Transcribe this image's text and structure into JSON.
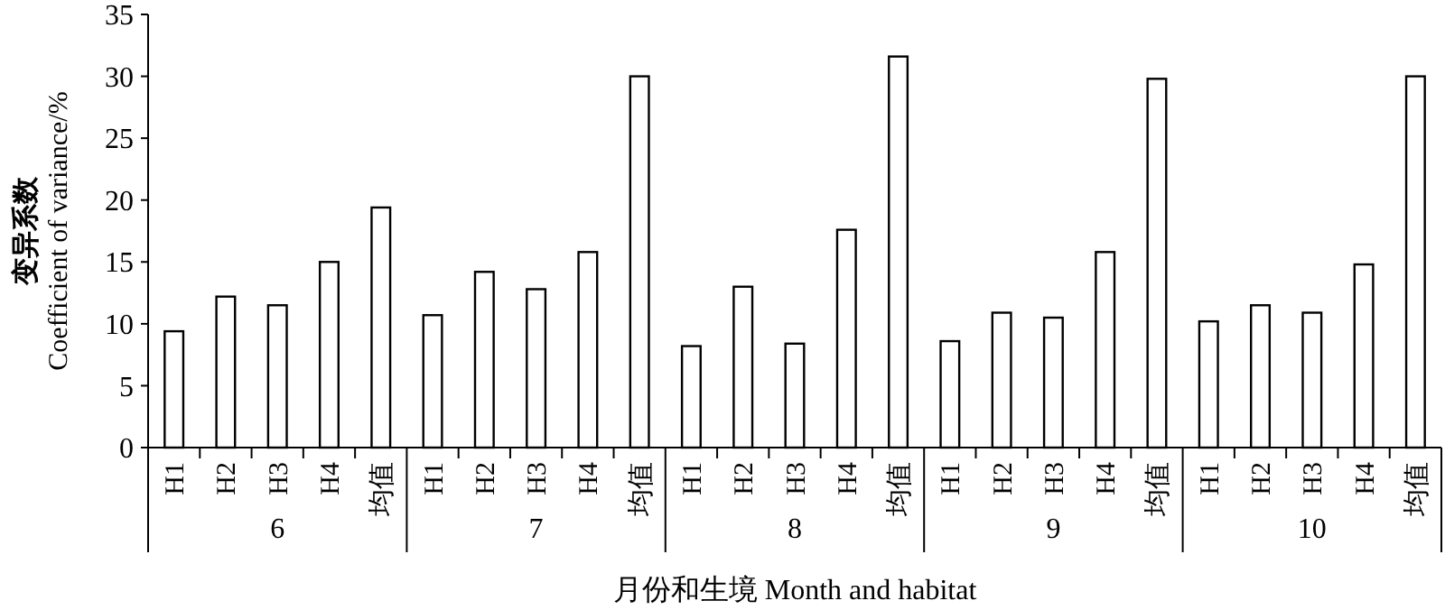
{
  "chart_data": {
    "type": "bar",
    "xlabel": "月份和生境 Month and habitat",
    "ylabel": "变异系数 Coefficient of variance/%",
    "categories": [
      "H1",
      "H2",
      "H3",
      "H4",
      "均值",
      "H1",
      "H2",
      "H3",
      "H4",
      "均值",
      "H1",
      "H2",
      "H3",
      "H4",
      "均值",
      "H1",
      "H2",
      "H3",
      "H4",
      "均值",
      "H1",
      "H2",
      "H3",
      "H4",
      "均值"
    ],
    "values": [
      9.4,
      12.2,
      11.5,
      15.0,
      19.4,
      10.7,
      14.2,
      12.8,
      15.8,
      30.0,
      8.2,
      13.0,
      8.4,
      17.6,
      31.6,
      8.6,
      10.9,
      10.5,
      15.8,
      29.8,
      10.2,
      11.5,
      10.9,
      14.8,
      30.0
    ],
    "color": "#ffffff",
    "annotations": [
      "6",
      "7",
      "8",
      "9",
      "10"
    ],
    "ylim": [
      0,
      35
    ],
    "yticks": [
      0,
      5,
      10,
      15,
      20,
      25,
      30,
      35
    ],
    "grid": false
  }
}
